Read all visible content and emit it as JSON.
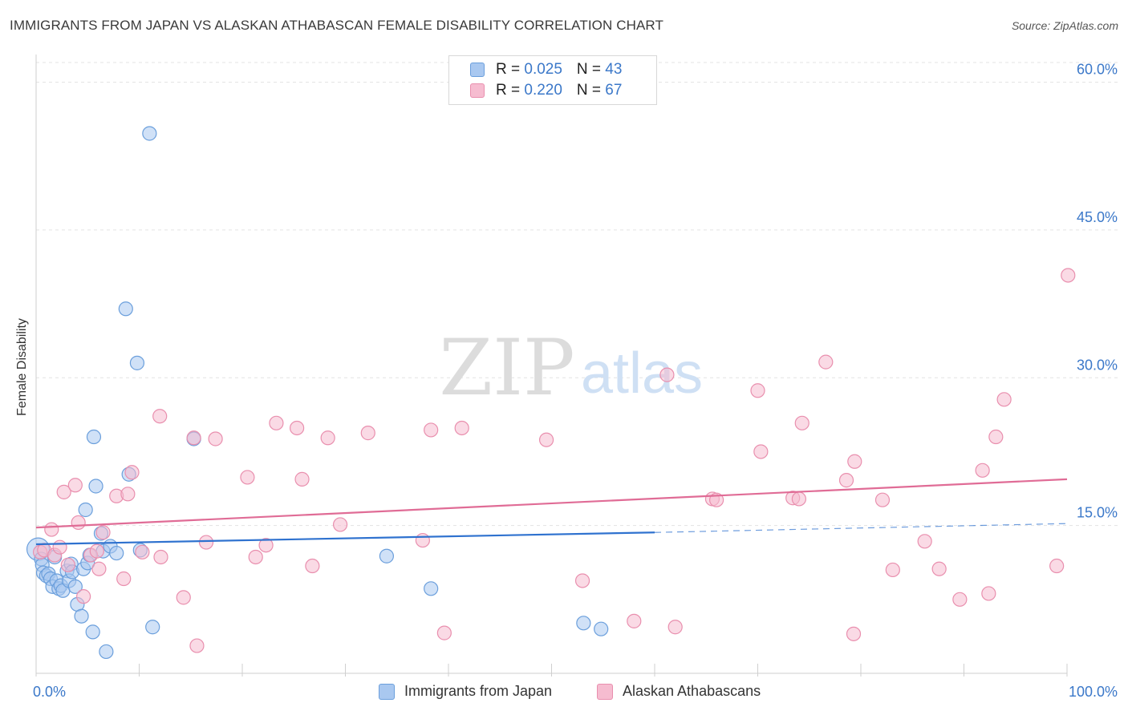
{
  "header": {
    "title": "IMMIGRANTS FROM JAPAN VS ALASKAN ATHABASCAN FEMALE DISABILITY CORRELATION CHART",
    "source": "Source: ZipAtlas.com"
  },
  "watermark": {
    "zip": "ZIP",
    "atlas": "atlas"
  },
  "legend_top": {
    "rows": [
      {
        "r_label": "R = ",
        "r_value": "0.025",
        "n_label": "N = ",
        "n_value": "43"
      },
      {
        "r_label": "R = ",
        "r_value": "0.220",
        "n_label": "N = ",
        "n_value": "67"
      }
    ]
  },
  "colors": {
    "blue_fill": "#a9c8f0",
    "blue_stroke": "#6b9fdc",
    "blue_line": "#2f72cf",
    "pink_fill": "#f6bcd0",
    "pink_stroke": "#e98fae",
    "pink_line": "#e06c96",
    "tick_label": "#3b78c9",
    "grid": "#e3e3e3"
  },
  "chart_data": {
    "type": "scatter",
    "title": "IMMIGRANTS FROM JAPAN VS ALASKAN ATHABASCAN FEMALE DISABILITY CORRELATION CHART",
    "xlabel": "",
    "ylabel": "Female Disability",
    "xlim": [
      0,
      100
    ],
    "ylim": [
      0,
      62
    ],
    "x_tick_labels": [
      "0.0%",
      "100.0%"
    ],
    "y_ticks": [
      15,
      30,
      45,
      60
    ],
    "y_tick_labels": [
      "15.0%",
      "30.0%",
      "45.0%",
      "60.0%"
    ],
    "grid": true,
    "legend_position": "top-center",
    "series": [
      {
        "name": "Immigrants from Japan",
        "R": 0.025,
        "N": 43,
        "trend": {
          "x0": 0,
          "y0": 13.1,
          "x1": 60,
          "y1": 14.3,
          "dashed_to_x": 100,
          "dashed_y1": 15.2
        },
        "points": [
          [
            0.2,
            12.6
          ],
          [
            0.5,
            11.6
          ],
          [
            0.6,
            11.0
          ],
          [
            0.7,
            10.2
          ],
          [
            1.0,
            9.9
          ],
          [
            1.2,
            10.1
          ],
          [
            1.4,
            9.6
          ],
          [
            1.6,
            8.8
          ],
          [
            1.8,
            11.8
          ],
          [
            2.0,
            9.4
          ],
          [
            2.2,
            8.6
          ],
          [
            2.4,
            8.9
          ],
          [
            2.6,
            8.4
          ],
          [
            3.0,
            10.4
          ],
          [
            3.2,
            9.4
          ],
          [
            3.4,
            11.1
          ],
          [
            3.5,
            10.3
          ],
          [
            3.8,
            8.8
          ],
          [
            4.0,
            7.0
          ],
          [
            4.4,
            5.8
          ],
          [
            4.6,
            10.6
          ],
          [
            4.8,
            16.6
          ],
          [
            5.0,
            11.2
          ],
          [
            5.2,
            12.0
          ],
          [
            5.5,
            4.2
          ],
          [
            5.6,
            24.0
          ],
          [
            5.8,
            19.0
          ],
          [
            6.3,
            14.2
          ],
          [
            6.5,
            12.4
          ],
          [
            6.8,
            2.2
          ],
          [
            7.2,
            12.9
          ],
          [
            7.8,
            12.2
          ],
          [
            8.7,
            37.0
          ],
          [
            9.0,
            20.2
          ],
          [
            9.8,
            31.5
          ],
          [
            10.1,
            12.5
          ],
          [
            11.0,
            54.8
          ],
          [
            11.3,
            4.7
          ],
          [
            15.3,
            23.8
          ],
          [
            34.0,
            11.9
          ],
          [
            38.3,
            8.6
          ],
          [
            53.1,
            5.1
          ],
          [
            54.8,
            4.5
          ]
        ]
      },
      {
        "name": "Alaskan Athabascans",
        "R": 0.22,
        "N": 67,
        "trend": {
          "x0": 0,
          "y0": 14.8,
          "x1": 100,
          "y1": 19.7
        },
        "points": [
          [
            0.4,
            12.3
          ],
          [
            0.8,
            12.5
          ],
          [
            1.5,
            14.6
          ],
          [
            1.8,
            12.0
          ],
          [
            2.3,
            12.8
          ],
          [
            2.7,
            18.4
          ],
          [
            3.1,
            11.0
          ],
          [
            3.8,
            19.1
          ],
          [
            4.1,
            15.3
          ],
          [
            4.6,
            7.8
          ],
          [
            5.3,
            12.0
          ],
          [
            5.9,
            12.4
          ],
          [
            6.1,
            10.6
          ],
          [
            6.5,
            14.3
          ],
          [
            7.8,
            18.0
          ],
          [
            8.5,
            9.6
          ],
          [
            8.9,
            18.2
          ],
          [
            9.3,
            20.4
          ],
          [
            10.3,
            12.3
          ],
          [
            12.0,
            26.1
          ],
          [
            12.1,
            11.8
          ],
          [
            14.3,
            7.7
          ],
          [
            15.3,
            23.9
          ],
          [
            15.6,
            2.8
          ],
          [
            16.5,
            13.3
          ],
          [
            17.4,
            23.8
          ],
          [
            20.5,
            19.9
          ],
          [
            21.3,
            11.8
          ],
          [
            22.3,
            13.0
          ],
          [
            23.3,
            25.4
          ],
          [
            25.3,
            24.9
          ],
          [
            25.8,
            19.7
          ],
          [
            26.8,
            10.9
          ],
          [
            28.3,
            23.9
          ],
          [
            29.5,
            15.1
          ],
          [
            32.2,
            24.4
          ],
          [
            37.5,
            13.5
          ],
          [
            38.3,
            24.7
          ],
          [
            39.6,
            4.1
          ],
          [
            41.3,
            24.9
          ],
          [
            49.5,
            23.7
          ],
          [
            53.0,
            9.4
          ],
          [
            58.0,
            5.3
          ],
          [
            61.2,
            30.3
          ],
          [
            62.0,
            4.7
          ],
          [
            65.6,
            17.7
          ],
          [
            66.0,
            17.6
          ],
          [
            70.0,
            28.7
          ],
          [
            70.3,
            22.5
          ],
          [
            73.4,
            17.8
          ],
          [
            74.0,
            17.7
          ],
          [
            74.3,
            25.4
          ],
          [
            76.6,
            31.6
          ],
          [
            78.6,
            19.6
          ],
          [
            79.3,
            4.0
          ],
          [
            79.4,
            21.5
          ],
          [
            82.1,
            17.6
          ],
          [
            83.1,
            10.5
          ],
          [
            86.2,
            13.4
          ],
          [
            87.6,
            10.6
          ],
          [
            89.6,
            7.5
          ],
          [
            91.8,
            20.6
          ],
          [
            92.4,
            8.1
          ],
          [
            93.1,
            24.0
          ],
          [
            93.9,
            27.8
          ],
          [
            99.0,
            10.9
          ],
          [
            100.1,
            40.4
          ]
        ]
      }
    ]
  },
  "bottom_legend": {
    "items": [
      "Immigrants from Japan",
      "Alaskan Athabascans"
    ]
  }
}
